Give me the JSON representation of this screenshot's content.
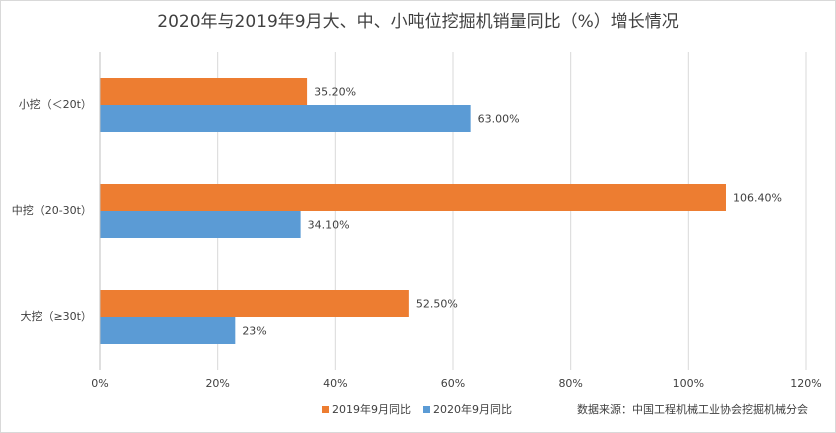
{
  "chart_data": {
    "type": "hbar",
    "title": "2020年与2019年9月大、中、小吨位挖掘机销量同比（%）增长情况",
    "categories": [
      "小挖（＜20t）",
      "中挖（20-30t）",
      "大挖（≥30t）"
    ],
    "series": [
      {
        "name": "2019年9月同比",
        "color": "#ed7d31",
        "values": [
          35.2,
          106.4,
          52.5
        ],
        "value_labels": [
          "35.20%",
          "106.40%",
          "52.50%"
        ]
      },
      {
        "name": "2020年9月同比",
        "color": "#5b9bd5",
        "values": [
          63,
          34.1,
          23
        ],
        "value_labels": [
          "63.00%",
          "34.10%",
          "23%"
        ]
      }
    ],
    "xlim": [
      0,
      120
    ],
    "xticks": [
      {
        "value": 0,
        "label": "0%"
      },
      {
        "value": 20,
        "label": "20%"
      },
      {
        "value": 40,
        "label": "40%"
      },
      {
        "value": 60,
        "label": "60%"
      },
      {
        "value": 80,
        "label": "80%"
      },
      {
        "value": 100,
        "label": "100%"
      },
      {
        "value": 120,
        "label": "120%"
      }
    ],
    "grid": true,
    "legend": "bottom",
    "source": "数据来源：中国工程机械工业协会挖掘机械分会"
  }
}
